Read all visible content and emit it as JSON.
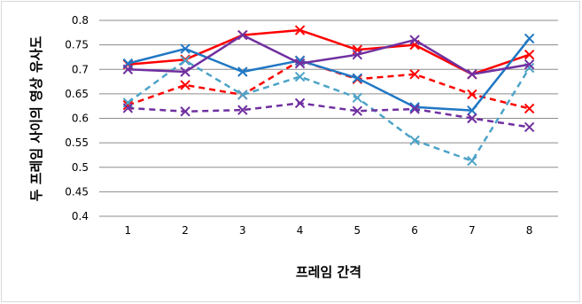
{
  "chart_data": {
    "type": "line",
    "title": "",
    "xlabel": "프레임 간격",
    "ylabel": "두 프레임 사이의 영상 유사도",
    "categories": [
      "1",
      "2",
      "3",
      "4",
      "5",
      "6",
      "7",
      "8"
    ],
    "yticks": [
      "0.8",
      "0.75",
      "0.7",
      "0.65",
      "0.6",
      "0.55",
      "0.5",
      "0.45",
      "0.4"
    ],
    "ylim": [
      0.4,
      0.8
    ],
    "grid": true,
    "legend": "none",
    "series": [
      {
        "color": "#ff0000",
        "dash": false,
        "values": [
          0.71,
          0.72,
          0.77,
          0.78,
          0.74,
          0.75,
          0.69,
          0.73
        ]
      },
      {
        "color": "#ff0000",
        "dash": true,
        "values": [
          0.627,
          0.668,
          0.648,
          0.718,
          0.68,
          0.69,
          0.649,
          0.62
        ]
      },
      {
        "color": "#1f77c4",
        "dash": false,
        "values": [
          0.712,
          0.742,
          0.695,
          0.718,
          0.682,
          0.623,
          0.616,
          0.763
        ]
      },
      {
        "color": "#4da3c8",
        "dash": true,
        "values": [
          0.632,
          0.718,
          0.648,
          0.685,
          0.642,
          0.555,
          0.513,
          0.703
        ]
      },
      {
        "color": "#7030a0",
        "dash": false,
        "values": [
          0.7,
          0.695,
          0.77,
          0.712,
          0.73,
          0.76,
          0.69,
          0.71
        ]
      },
      {
        "color": "#7030a0",
        "dash": true,
        "values": [
          0.621,
          0.614,
          0.617,
          0.631,
          0.615,
          0.619,
          0.6,
          0.582
        ]
      }
    ]
  }
}
